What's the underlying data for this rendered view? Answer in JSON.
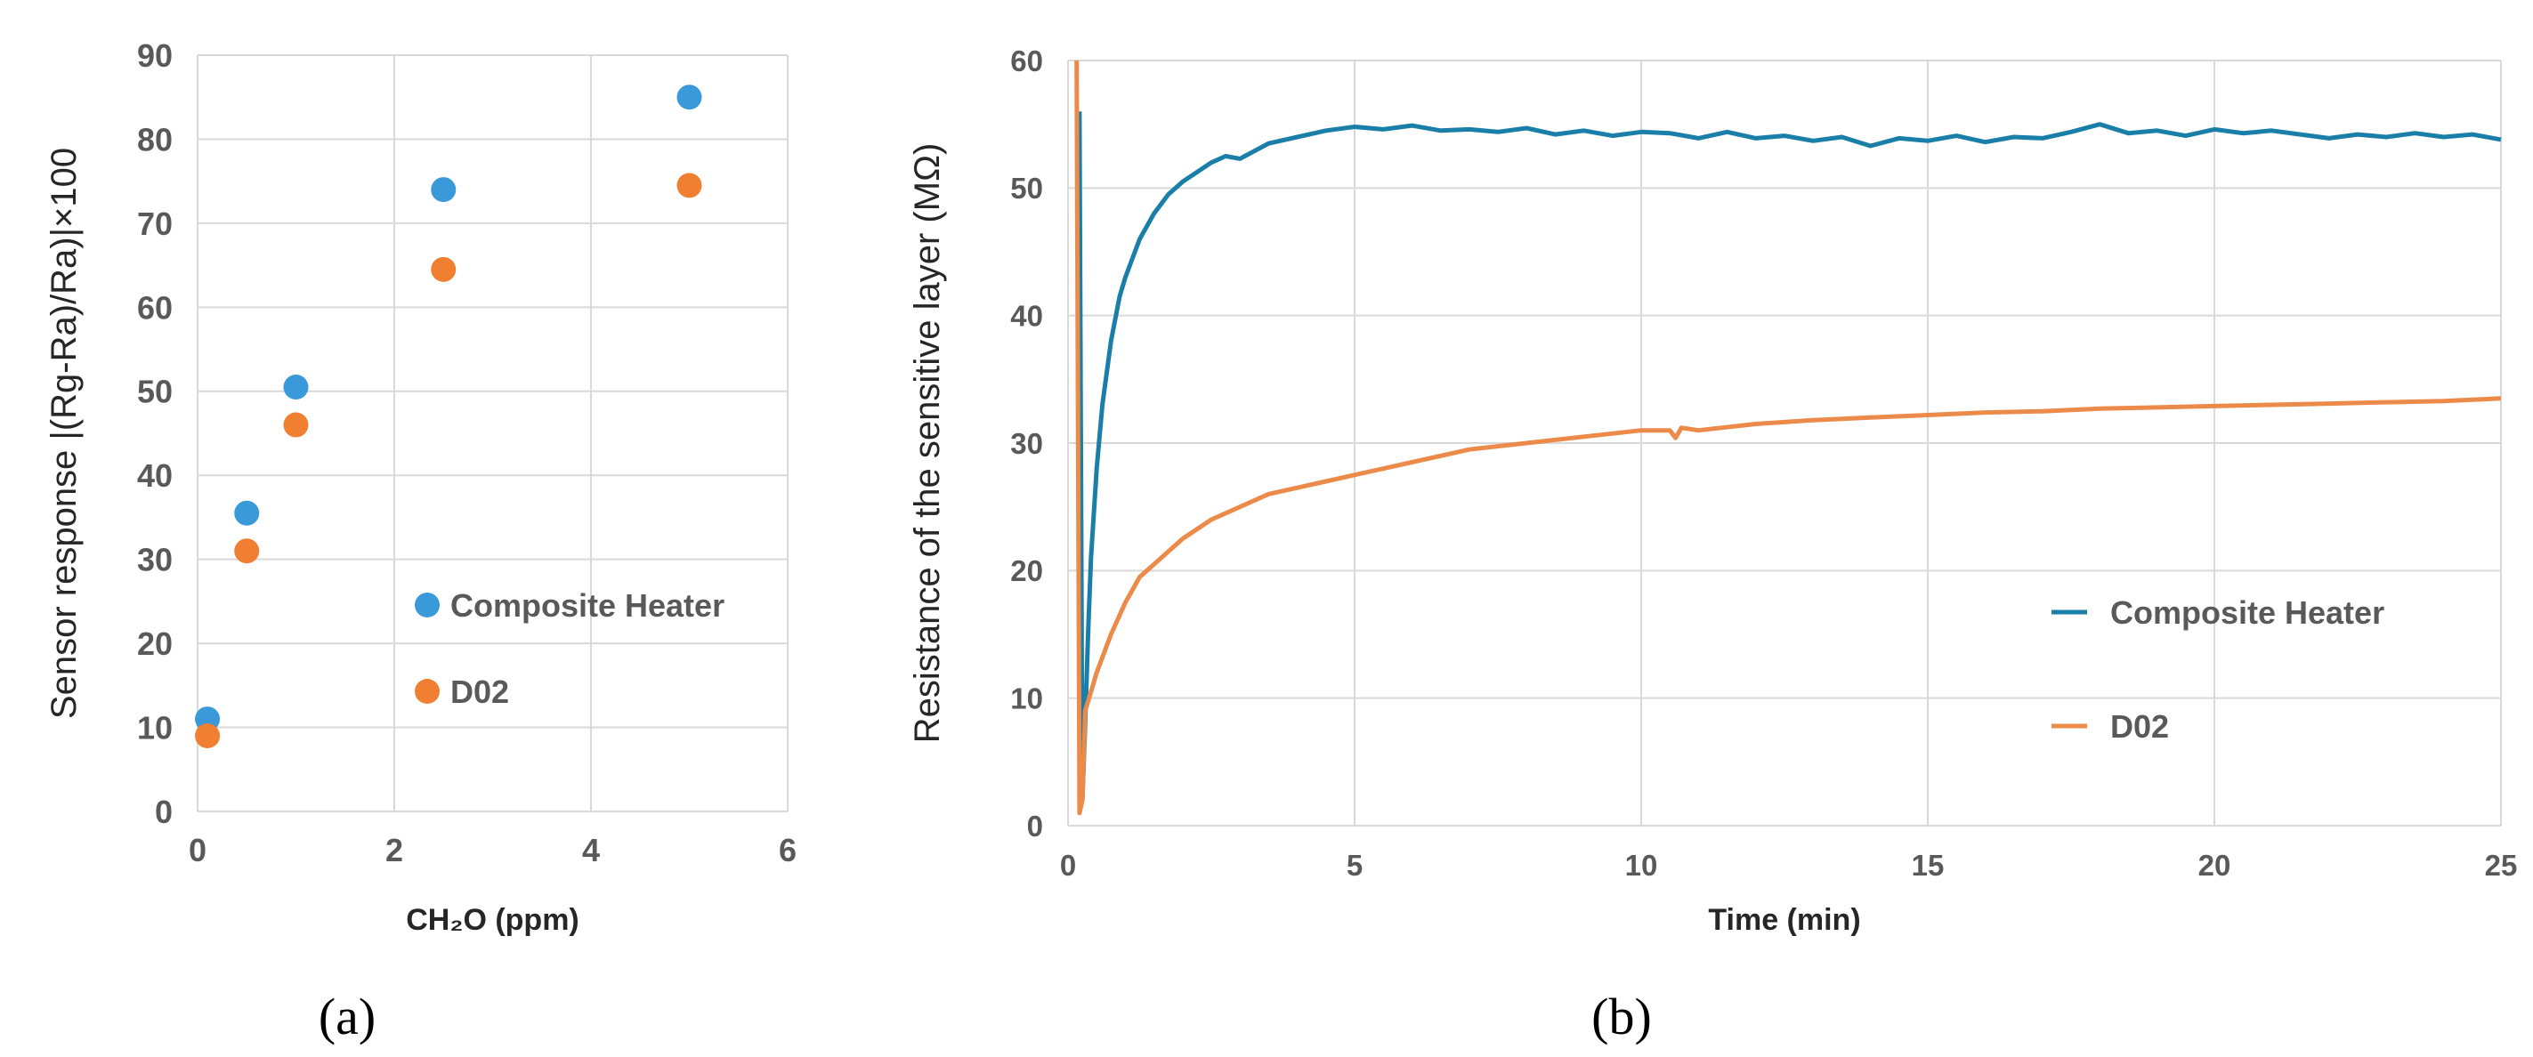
{
  "chart_data": [
    {
      "type": "scatter",
      "panel_label": "(a)",
      "xlabel": "CH₂O (ppm)",
      "ylabel": "Sensor response |(Rg-Ra)/Ra)|×100",
      "xlim": [
        0,
        6
      ],
      "ylim": [
        0,
        90
      ],
      "xticks": [
        "0",
        "2",
        "4",
        "6"
      ],
      "yticks": [
        "0",
        "10",
        "20",
        "30",
        "40",
        "50",
        "60",
        "70",
        "80",
        "90"
      ],
      "grid": true,
      "legend_position": "center-right",
      "series": [
        {
          "name": "Composite Heater",
          "color": "#3a9ad9",
          "x": [
            0.1,
            0.5,
            1.0,
            2.5,
            5.0
          ],
          "y": [
            11,
            35.5,
            50.5,
            74,
            85
          ]
        },
        {
          "name": "D02",
          "color": "#f07f31",
          "x": [
            0.1,
            0.5,
            1.0,
            2.5,
            5.0
          ],
          "y": [
            9,
            31,
            46,
            64.5,
            74.5
          ]
        }
      ]
    },
    {
      "type": "line",
      "panel_label": "(b)",
      "xlabel": "Time (min)",
      "ylabel": "Resistance of the sensitive layer (MΩ)",
      "xlim": [
        0,
        25
      ],
      "ylim": [
        0,
        60
      ],
      "xticks": [
        "0",
        "5",
        "10",
        "15",
        "20",
        "25"
      ],
      "yticks": [
        "0",
        "10",
        "20",
        "30",
        "40",
        "50",
        "60"
      ],
      "grid": true,
      "legend_position": "center-right",
      "series": [
        {
          "name": "Composite Heater",
          "color": "#1a7fa8",
          "x": [
            0.2,
            0.25,
            0.3,
            0.35,
            0.4,
            0.5,
            0.6,
            0.75,
            0.9,
            1.0,
            1.25,
            1.5,
            1.75,
            2.0,
            2.5,
            2.75,
            3.0,
            3.5,
            4.0,
            4.5,
            5.0,
            5.5,
            6.0,
            6.5,
            7.0,
            7.5,
            8.0,
            8.5,
            9.0,
            9.5,
            10.0,
            10.5,
            11.0,
            11.5,
            12.0,
            12.5,
            13.0,
            13.5,
            14.0,
            14.5,
            15.0,
            15.5,
            16.0,
            16.5,
            17.0,
            17.5,
            18.0,
            18.5,
            19.0,
            19.5,
            20.0,
            20.5,
            21.0,
            21.5,
            22.0,
            22.5,
            23.0,
            23.5,
            24.0,
            24.5,
            25.0
          ],
          "y": [
            56,
            2,
            8,
            15,
            21,
            28,
            33,
            38,
            41.5,
            43,
            46,
            48,
            49.5,
            50.5,
            52,
            52.5,
            52.3,
            53.5,
            54,
            54.5,
            54.8,
            54.6,
            54.9,
            54.5,
            54.6,
            54.4,
            54.7,
            54.2,
            54.5,
            54.1,
            54.4,
            54.3,
            53.9,
            54.4,
            53.9,
            54.1,
            53.7,
            54.0,
            53.3,
            53.9,
            53.7,
            54.1,
            53.6,
            54.0,
            53.9,
            54.4,
            55.0,
            54.3,
            54.5,
            54.1,
            54.6,
            54.3,
            54.5,
            54.2,
            53.9,
            54.2,
            54.0,
            54.3,
            54.0,
            54.2,
            53.8
          ]
        },
        {
          "name": "D02",
          "color": "#ec8a4a",
          "x": [
            0.15,
            0.2,
            0.25,
            0.3,
            0.4,
            0.5,
            0.75,
            1.0,
            1.25,
            1.5,
            2.0,
            2.5,
            3.0,
            3.5,
            4.0,
            4.5,
            5.0,
            5.5,
            6.0,
            7.0,
            8.0,
            9.0,
            10.0,
            10.5,
            10.6,
            10.7,
            11.0,
            12.0,
            13.0,
            14.0,
            15.0,
            16.0,
            17.0,
            18.0,
            19.0,
            20.0,
            21.0,
            22.0,
            23.0,
            24.0,
            25.0
          ],
          "y": [
            60,
            1,
            2,
            9,
            10.5,
            12,
            15,
            17.5,
            19.5,
            20.5,
            22.5,
            24,
            25,
            26,
            26.5,
            27,
            27.5,
            28,
            28.5,
            29.5,
            30,
            30.5,
            31,
            31,
            30.4,
            31.2,
            31,
            31.5,
            31.8,
            32,
            32.2,
            32.4,
            32.5,
            32.7,
            32.8,
            32.9,
            33,
            33.1,
            33.2,
            33.3,
            33.5
          ]
        }
      ]
    }
  ]
}
